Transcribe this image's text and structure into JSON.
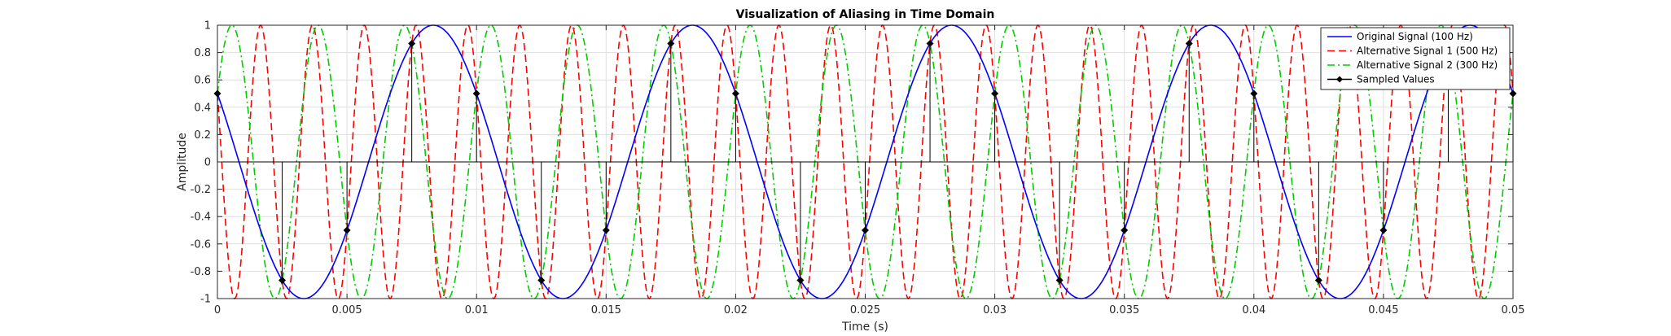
{
  "chart_data": {
    "type": "line",
    "title": "Visualization of Aliasing in Time Domain",
    "xlabel": "Time (s)",
    "ylabel": "Amplitude",
    "xlim": [
      0,
      0.05
    ],
    "ylim": [
      -1,
      1
    ],
    "grid": true,
    "legend_position": "top-right",
    "x_ticks": [
      0,
      0.005,
      0.01,
      0.015,
      0.02,
      0.025,
      0.03,
      0.035,
      0.04,
      0.045,
      0.05
    ],
    "x_tick_labels": [
      "0",
      "0.005",
      "0.01",
      "0.015",
      "0.02",
      "0.025",
      "0.03",
      "0.035",
      "0.04",
      "0.045",
      "0.05"
    ],
    "y_ticks": [
      -1,
      -0.8,
      -0.6,
      -0.4,
      -0.2,
      0,
      0.2,
      0.4,
      0.6,
      0.8,
      1
    ],
    "y_tick_labels": [
      "-1",
      "-0.8",
      "-0.6",
      "-0.4",
      "-0.2",
      "0",
      "0.2",
      "0.4",
      "0.6",
      "0.8",
      "1"
    ],
    "series": [
      {
        "name": "Original Signal (100 Hz)",
        "frequency_hz": 100,
        "phase_deg": 150,
        "style": "solid",
        "color": "#0000ff",
        "marker": "none"
      },
      {
        "name": "Alternative Signal 1 (500 Hz)",
        "frequency_hz": 500,
        "phase_deg": 150,
        "style": "dashed",
        "color": "#ff0000",
        "marker": "none"
      },
      {
        "name": "Alternative Signal 2 (300 Hz)",
        "frequency_hz": 300,
        "phase_deg": 30,
        "style": "dashdot",
        "color": "#00cc00",
        "marker": "none"
      },
      {
        "name": "Sampled Values",
        "style": "stem",
        "color": "#000000",
        "marker": "diamond",
        "x": [
          0,
          0.0025,
          0.005,
          0.0075,
          0.01,
          0.0125,
          0.015,
          0.0175,
          0.02,
          0.0225,
          0.025,
          0.0275,
          0.03,
          0.0325,
          0.035,
          0.0375,
          0.04,
          0.0425,
          0.045,
          0.0475,
          0.05
        ],
        "y": [
          0.5,
          -0.866,
          -0.5,
          0.866,
          0.5,
          -0.866,
          -0.5,
          0.866,
          0.5,
          -0.866,
          -0.5,
          0.866,
          0.5,
          -0.866,
          -0.5,
          0.866,
          0.5,
          -0.866,
          -0.5,
          0.866,
          0.5
        ]
      }
    ]
  }
}
